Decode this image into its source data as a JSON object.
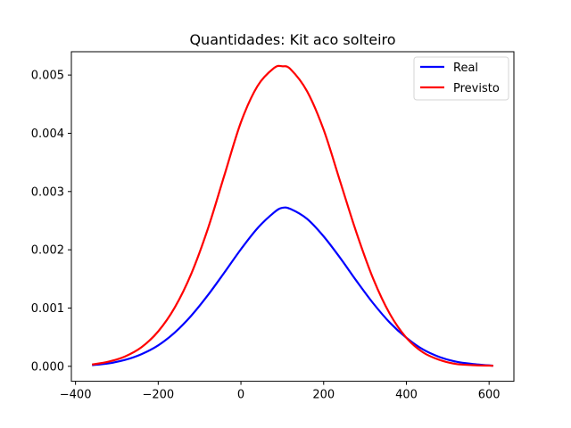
{
  "chart_data": {
    "type": "line",
    "title": "Quantidades: Kit aco solteiro",
    "xlabel": "",
    "ylabel": "",
    "xlim": [
      -410,
      660
    ],
    "ylim": [
      -0.000257,
      0.0054
    ],
    "xticks": [
      -400,
      -200,
      0,
      200,
      400,
      600
    ],
    "xtick_labels": [
      "−400",
      "−200",
      "0",
      "200",
      "400",
      "600"
    ],
    "yticks": [
      0.0,
      0.001,
      0.002,
      0.003,
      0.004,
      0.005
    ],
    "ytick_labels": [
      "0.000",
      "0.001",
      "0.002",
      "0.003",
      "0.004",
      "0.005"
    ],
    "grid": false,
    "legend_position": "top-right",
    "series": [
      {
        "name": "Real",
        "color": "#0000ff",
        "x": [
          -360,
          -320,
          -280,
          -240,
          -200,
          -160,
          -120,
          -80,
          -40,
          0,
          40,
          80,
          100,
          120,
          160,
          200,
          240,
          280,
          320,
          360,
          400,
          440,
          480,
          520,
          560,
          610
        ],
        "y": [
          2e-05,
          5e-05,
          0.00011,
          0.00021,
          0.00036,
          0.00058,
          0.00087,
          0.00122,
          0.00161,
          0.00201,
          0.00237,
          0.00264,
          0.00272,
          0.0027,
          0.00253,
          0.00223,
          0.00186,
          0.00146,
          0.00108,
          0.00075,
          0.00049,
          0.00029,
          0.00016,
          8e-05,
          4e-05,
          1e-05
        ]
      },
      {
        "name": "Previsto",
        "color": "#ff0000",
        "x": [
          -360,
          -320,
          -280,
          -240,
          -200,
          -160,
          -120,
          -80,
          -40,
          0,
          40,
          80,
          100,
          120,
          160,
          200,
          240,
          280,
          320,
          360,
          400,
          440,
          480,
          520,
          560,
          610
        ],
        "y": [
          3e-05,
          8e-05,
          0.00017,
          0.00033,
          0.0006,
          0.00101,
          0.00159,
          0.00236,
          0.00328,
          0.00419,
          0.00481,
          0.00512,
          0.00515,
          0.0051,
          0.00472,
          0.00406,
          0.00317,
          0.00228,
          0.0015,
          0.0009,
          0.00049,
          0.00024,
          0.00011,
          4e-05,
          2e-05,
          1e-05
        ]
      }
    ]
  }
}
